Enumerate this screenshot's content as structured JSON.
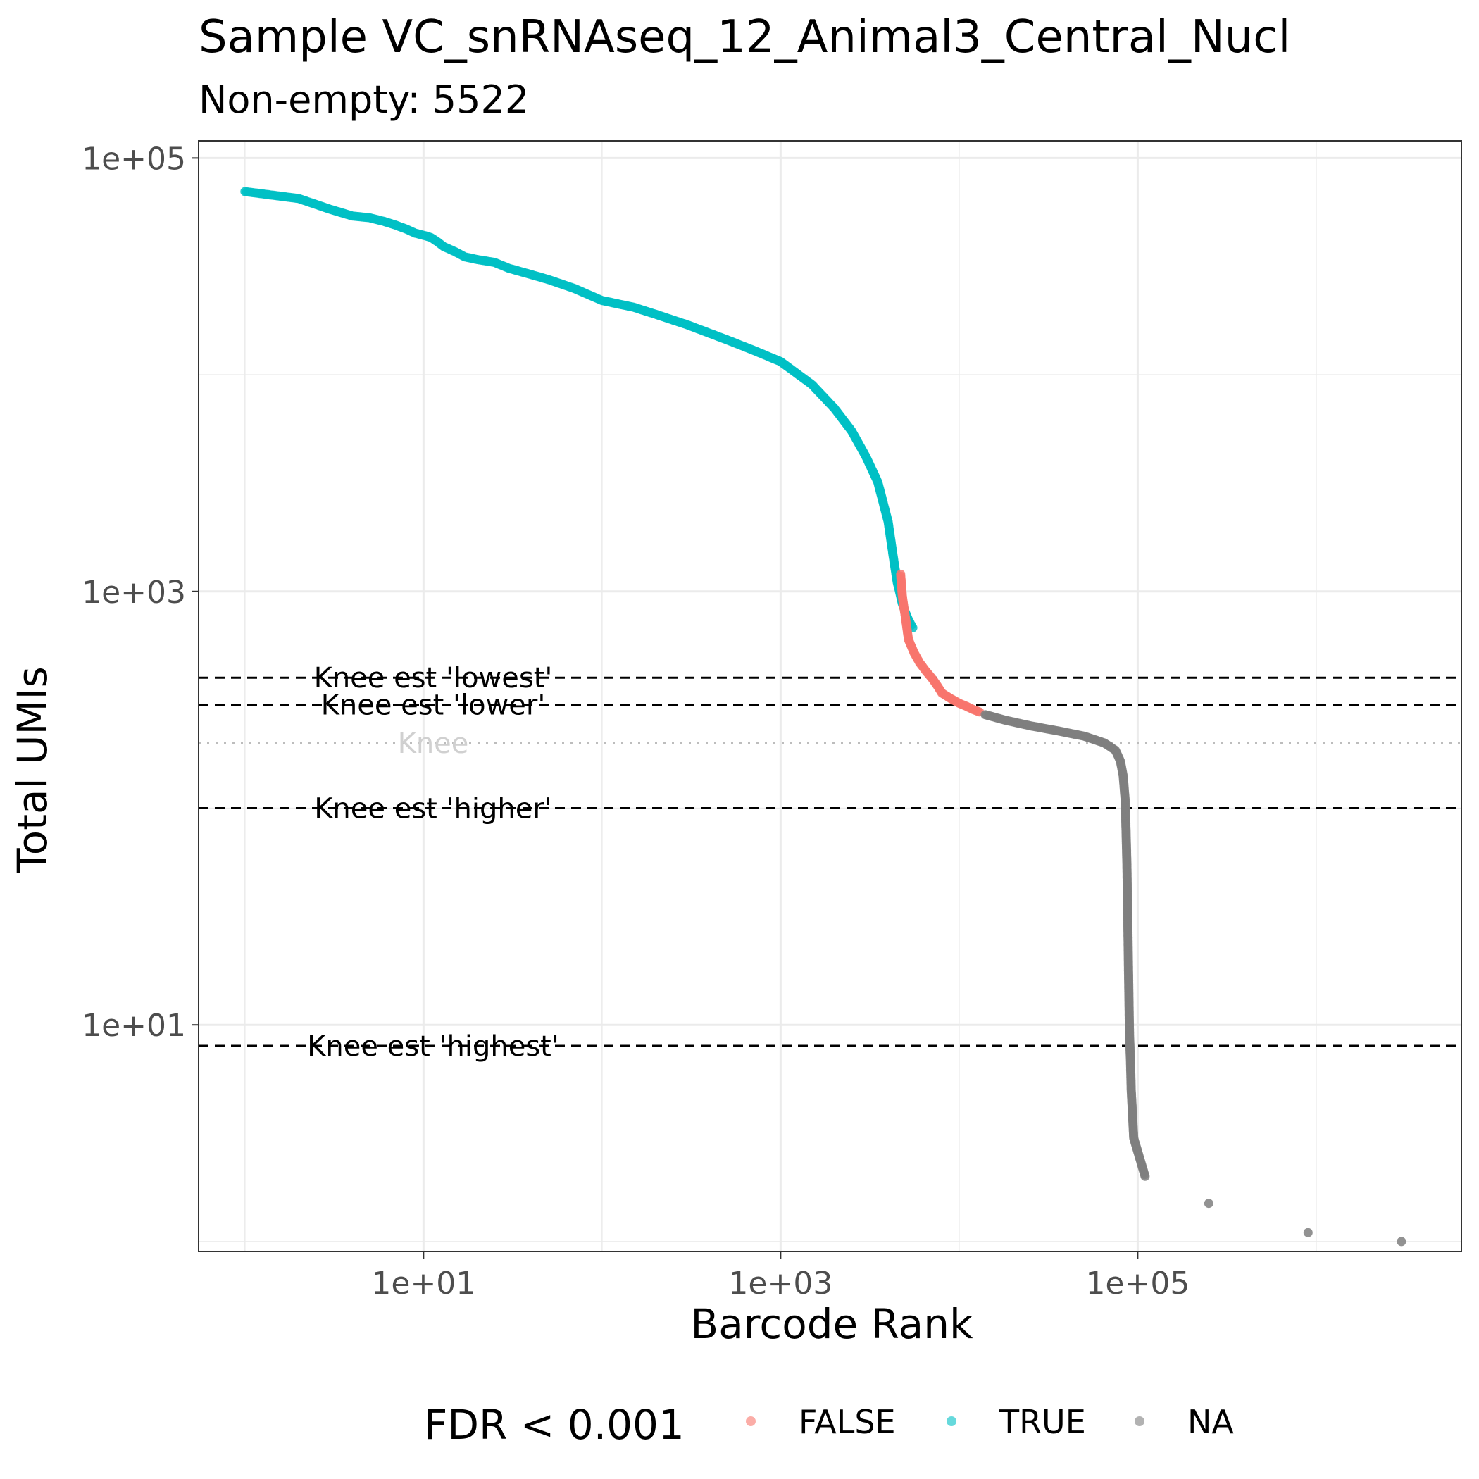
{
  "chart_data": {
    "type": "scatter",
    "title": "Sample VC_snRNAseq_12_Animal3_Central_Nucl",
    "subtitle": "Non-empty: 5522",
    "xlabel": "Barcode Rank",
    "ylabel": "Total UMIs",
    "x_scale": "log10",
    "y_scale": "log10",
    "xlim": [
      0.55,
      6500000
    ],
    "ylim": [
      0.9,
      120000
    ],
    "x_ticks": [
      10,
      1000,
      100000
    ],
    "x_tick_labels": [
      "1e+01",
      "1e+03",
      "1e+05"
    ],
    "y_ticks": [
      10,
      1000,
      100000
    ],
    "y_tick_labels": [
      "1e+01",
      "1e+03",
      "1e+05"
    ],
    "grid": true,
    "legend": {
      "title": "FDR < 0.001",
      "position": "bottom",
      "entries": [
        {
          "label": "FALSE",
          "color": "#F8766D"
        },
        {
          "label": "TRUE",
          "color": "#00BFC4"
        },
        {
          "label": "NA",
          "color": "#7F7F7F"
        }
      ]
    },
    "series": [
      {
        "name": "TRUE",
        "color": "#00BFC4",
        "x": [
          1,
          2,
          3,
          4,
          5,
          6,
          7,
          8,
          9,
          10,
          11,
          12,
          13,
          15,
          17,
          20,
          25,
          30,
          40,
          50,
          70,
          100,
          150,
          200,
          300,
          500,
          700,
          1000,
          1500,
          2000,
          2500,
          3000,
          3500,
          4000,
          4300,
          4500,
          4700,
          4800,
          4900,
          5000,
          5100,
          5200,
          5300,
          5400,
          5500
        ],
        "y": [
          70000,
          65000,
          58000,
          54000,
          53000,
          51000,
          49000,
          47000,
          45000,
          44000,
          43000,
          41000,
          39000,
          37000,
          35000,
          34000,
          33000,
          31000,
          29000,
          27500,
          25000,
          22000,
          20500,
          19000,
          17000,
          14500,
          13000,
          11500,
          9000,
          7000,
          5500,
          4200,
          3200,
          2100,
          1400,
          1100,
          950,
          880,
          840,
          800,
          770,
          740,
          720,
          700,
          680
        ]
      },
      {
        "name": "FALSE",
        "color": "#F8766D",
        "x": [
          4700,
          4750,
          4800,
          4850,
          4900,
          4950,
          5000,
          5200,
          5600,
          6000,
          6500,
          7000,
          7500,
          8000,
          9000,
          10000,
          11000,
          12000,
          13000
        ],
        "y": [
          1200,
          1080,
          960,
          900,
          850,
          800,
          760,
          600,
          520,
          470,
          430,
          400,
          370,
          340,
          320,
          305,
          295,
          285,
          278
        ]
      },
      {
        "name": "NA",
        "color": "#7F7F7F",
        "x": [
          14000,
          18000,
          25000,
          35000,
          50000,
          65000,
          75000,
          80000,
          83000,
          85000,
          86000,
          87000,
          87500,
          88000,
          88500,
          89000,
          89500,
          90000,
          91000,
          92000,
          95000,
          110000,
          250000,
          900000,
          3000000
        ],
        "y": [
          270,
          255,
          240,
          228,
          215,
          200,
          185,
          165,
          140,
          110,
          80,
          55,
          40,
          30,
          22,
          16,
          12,
          9,
          7,
          5,
          3,
          2,
          1.5,
          1.1,
          1
        ]
      }
    ],
    "hlines": [
      {
        "y": 400,
        "style": "dashed",
        "label": "Knee est 'lowest'"
      },
      {
        "y": 300,
        "style": "dashed",
        "label": "Knee est 'lower'"
      },
      {
        "y": 200,
        "style": "dotted",
        "label": "Knee"
      },
      {
        "y": 100,
        "style": "dashed",
        "label": "Knee est 'higher'"
      },
      {
        "y": 8,
        "style": "dashed",
        "label": "Knee est 'highest'"
      }
    ]
  }
}
